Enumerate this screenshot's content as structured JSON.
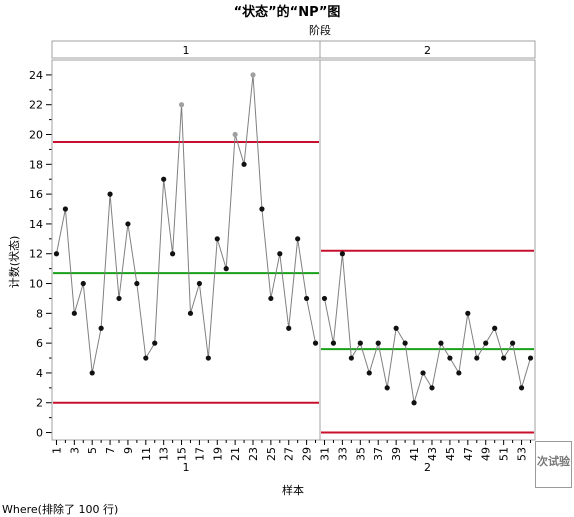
{
  "chart_data": {
    "type": "line",
    "title": "“状态”的“NP”图",
    "phase_header_label": "阶段",
    "xlabel": "样本",
    "ylabel": "计数(状态)",
    "ylim": [
      -0.5,
      25
    ],
    "yticks": [
      0,
      2,
      4,
      6,
      8,
      10,
      12,
      14,
      16,
      18,
      20,
      22,
      24
    ],
    "phases": [
      {
        "name": "1",
        "x": [
          1,
          2,
          3,
          4,
          5,
          6,
          7,
          8,
          9,
          10,
          11,
          12,
          13,
          14,
          15,
          16,
          17,
          18,
          19,
          20,
          21,
          22,
          23,
          24,
          25,
          26,
          27,
          28,
          29,
          30
        ],
        "values": [
          12,
          15,
          8,
          10,
          4,
          7,
          16,
          9,
          14,
          10,
          5,
          6,
          17,
          12,
          22,
          8,
          10,
          5,
          13,
          11,
          20,
          18,
          24,
          15,
          9,
          12,
          7,
          13,
          9,
          6
        ],
        "ucl": 19.5,
        "center": 10.7,
        "lcl": 2.0,
        "x_tick_labels": [
          "1",
          "3",
          "5",
          "7",
          "9",
          "11",
          "13",
          "15",
          "17",
          "19",
          "21",
          "23",
          "25",
          "27",
          "29"
        ]
      },
      {
        "name": "2",
        "x": [
          31,
          32,
          33,
          34,
          35,
          36,
          37,
          38,
          39,
          40,
          41,
          42,
          43,
          44,
          45,
          46,
          47,
          48,
          49,
          50,
          51,
          52,
          53,
          54
        ],
        "values": [
          9,
          6,
          12,
          5,
          6,
          4,
          6,
          3,
          7,
          6,
          2,
          4,
          3,
          6,
          5,
          4,
          8,
          5,
          6,
          7,
          5,
          6,
          3,
          5
        ],
        "ucl": 12.2,
        "center": 5.6,
        "lcl": 0.0,
        "x_tick_labels": [
          "31",
          "33",
          "35",
          "37",
          "39",
          "41",
          "43",
          "45",
          "47",
          "49",
          "51",
          "53"
        ]
      }
    ],
    "grid": false,
    "colors": {
      "line": "#808080",
      "point": "#111111",
      "out_of_control_point": "#a0a0a0",
      "limit": "#c8102e",
      "center": "#1aa11a",
      "frame": "#a0a0a0"
    }
  },
  "side_button": {
    "label": "n 次试验"
  },
  "footer": {
    "text": "Where(排除了 100 行)"
  }
}
